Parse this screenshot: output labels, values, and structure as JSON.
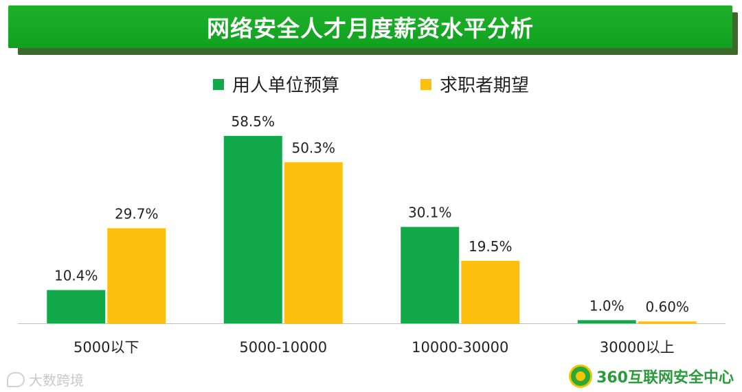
{
  "watermark": "大数跨境",
  "logo_text": "360互联网安全中心",
  "colors": {
    "green": "#12a94a",
    "yellow": "#fdc00f",
    "banner": "#15a826"
  },
  "chart_data": {
    "type": "bar",
    "title": "网络安全人才月度薪资水平分析",
    "categories": [
      "5000以下",
      "5000-10000",
      "10000-30000",
      "30000以上"
    ],
    "series": [
      {
        "name": "用人单位预算",
        "values": [
          10.4,
          58.5,
          30.1,
          1.0
        ],
        "labels": [
          "10.4%",
          "58.5%",
          "30.1%",
          "1.0%"
        ],
        "color": "#12a94a"
      },
      {
        "name": "求职者期望",
        "values": [
          29.7,
          50.3,
          19.5,
          0.6
        ],
        "labels": [
          "29.7%",
          "50.3%",
          "19.5%",
          "0.60%"
        ],
        "color": "#fdc00f"
      }
    ],
    "ylim": [
      0,
      58.5
    ],
    "grid": false,
    "legend": "top-center"
  }
}
